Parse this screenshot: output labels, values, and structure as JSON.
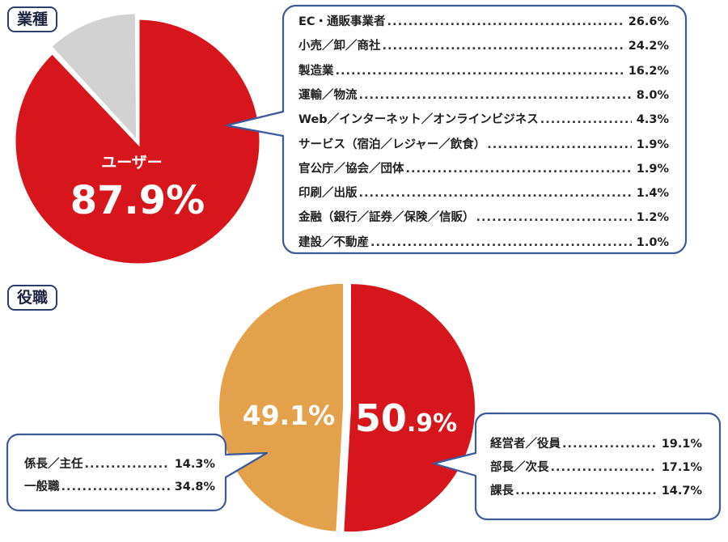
{
  "sections": {
    "industry": {
      "title": "業種"
    },
    "position": {
      "title": "役職"
    }
  },
  "colors": {
    "primary_red": "#d7151d",
    "gray": "#d2d2d2",
    "orange": "#e2a14a",
    "bubble_border": "#3b5a9a"
  },
  "chart_data": [
    {
      "type": "pie",
      "title": "業種",
      "slices": [
        {
          "label": "ユーザー",
          "value": 87.9,
          "value_text": "87.9%",
          "color": "#d7151d"
        },
        {
          "label": "",
          "value": 12.1,
          "color": "#d2d2d2"
        }
      ],
      "breakdown": [
        {
          "label": "EC・通販事業者",
          "value": 26.6,
          "value_text": "26.6%"
        },
        {
          "label": "小売／卸／商社",
          "value": 24.2,
          "value_text": "24.2%"
        },
        {
          "label": "製造業",
          "value": 16.2,
          "value_text": "16.2%"
        },
        {
          "label": "運輸／物流",
          "value": 8.0,
          "value_text": "8.0%"
        },
        {
          "label": "Web／インターネット／オンラインビジネス",
          "value": 4.3,
          "value_text": "4.3%"
        },
        {
          "label": "サービス（宿泊／レジャー／飲食）",
          "value": 1.9,
          "value_text": "1.9%"
        },
        {
          "label": "官公庁／協会／団体",
          "value": 1.9,
          "value_text": "1.9%"
        },
        {
          "label": "印刷／出版",
          "value": 1.4,
          "value_text": "1.4%"
        },
        {
          "label": "金融（銀行／証券／保険／信販）",
          "value": 1.2,
          "value_text": "1.2%"
        },
        {
          "label": "建設／不動産",
          "value": 1.0,
          "value_text": "1.0%"
        }
      ]
    },
    {
      "type": "pie",
      "title": "役職",
      "slices": [
        {
          "label": "",
          "value": 50.9,
          "value_text": "50.9%",
          "color": "#d7151d"
        },
        {
          "label": "",
          "value": 49.1,
          "value_text": "49.1%",
          "color": "#e2a14a"
        }
      ],
      "breakdown_red": [
        {
          "label": "経営者／役員",
          "value": 19.1,
          "value_text": "19.1%"
        },
        {
          "label": "部長／次長",
          "value": 17.1,
          "value_text": "17.1%"
        },
        {
          "label": "課長",
          "value": 14.7,
          "value_text": "14.7%"
        }
      ],
      "breakdown_orange": [
        {
          "label": "係長／主任",
          "value": 14.3,
          "value_text": "14.3%"
        },
        {
          "label": "一般職",
          "value": 34.8,
          "value_text": "34.8%"
        }
      ]
    }
  ]
}
